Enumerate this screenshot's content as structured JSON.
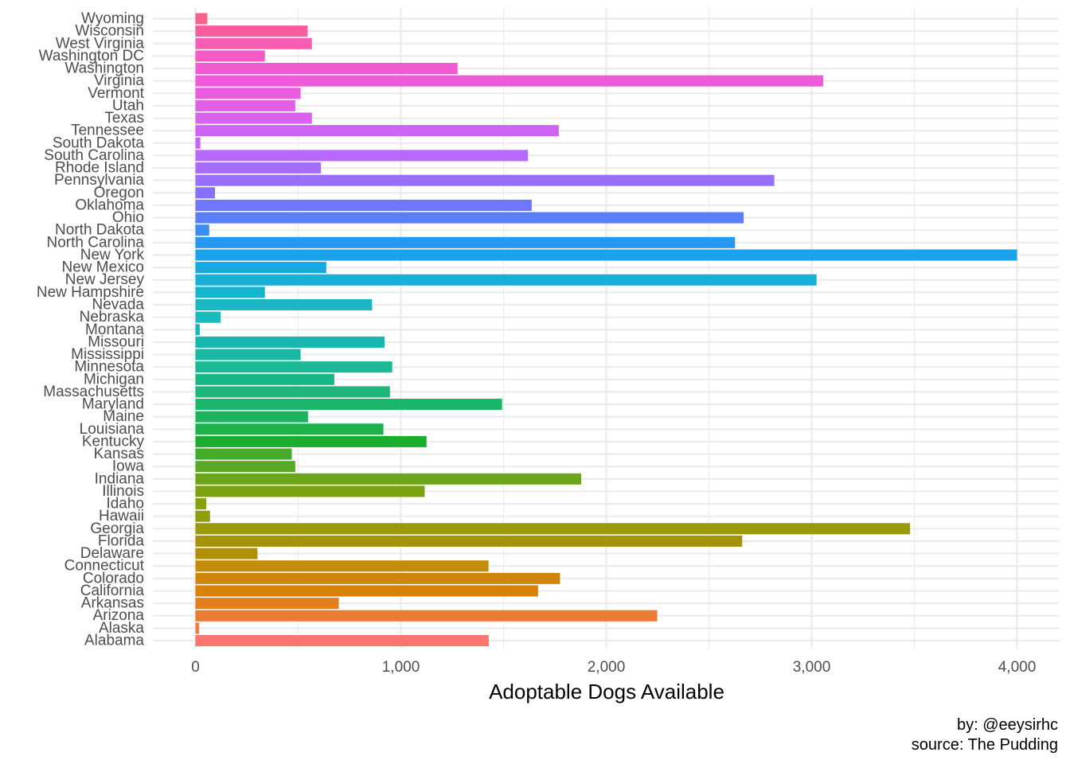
{
  "chart_data": {
    "type": "bar",
    "orientation": "horizontal",
    "categories": [
      "Alabama",
      "Alaska",
      "Arizona",
      "Arkansas",
      "California",
      "Colorado",
      "Connecticut",
      "Delaware",
      "Florida",
      "Georgia",
      "Hawaii",
      "Idaho",
      "Illinois",
      "Indiana",
      "Iowa",
      "Kansas",
      "Kentucky",
      "Louisiana",
      "Maine",
      "Maryland",
      "Massachusetts",
      "Michigan",
      "Minnesota",
      "Mississippi",
      "Missouri",
      "Montana",
      "Nebraska",
      "Nevada",
      "New Hampshire",
      "New Jersey",
      "New Mexico",
      "New York",
      "North Carolina",
      "North Dakota",
      "Ohio",
      "Oklahoma",
      "Oregon",
      "Pennsylvania",
      "Rhode Island",
      "South Carolina",
      "South Dakota",
      "Tennessee",
      "Texas",
      "Utah",
      "Vermont",
      "Virginia",
      "Washington",
      "Washington DC",
      "West Virginia",
      "Wisconsin",
      "Wyoming"
    ],
    "values": [
      1428,
      18,
      2248,
      698,
      1668,
      1775,
      1427,
      302,
      2662,
      3479,
      71,
      53,
      1116,
      1878,
      486,
      469,
      1125,
      915,
      548,
      1493,
      947,
      676,
      958,
      512,
      921,
      21,
      123,
      860,
      338,
      3024,
      637,
      4000,
      2627,
      67,
      2669,
      1637,
      95,
      2818,
      611,
      1619,
      24,
      1769,
      567,
      486,
      512,
      3056,
      1276,
      338,
      567,
      546,
      58
    ],
    "colors": [
      "#F8766D",
      "#F17C48",
      "#EA7B32",
      "#E27E1C",
      "#D88208",
      "#D0860A",
      "#C38D09",
      "#B18F09",
      "#A5930A",
      "#999A0A",
      "#8F9E0B",
      "#85A10B",
      "#7BA10F",
      "#6BA51A",
      "#59A924",
      "#43AC2B",
      "#1BAE2C",
      "#1DB24A",
      "#1EB45E",
      "#1AB76B",
      "#1FB57B",
      "#18B788",
      "#1CB996",
      "#18B8A3",
      "#15B7AE",
      "#19B8B5",
      "#1BBABC",
      "#1BB8C4",
      "#17B5CD",
      "#19B0D8",
      "#17AAE2",
      "#1AA2EC",
      "#2598F0",
      "#3A8DF5",
      "#587FF9",
      "#6E77FB",
      "#866FFC",
      "#9870FD",
      "#A66DFC",
      "#B669FB",
      "#C465F7",
      "#CF63F4",
      "#D862EE",
      "#E15FE8",
      "#E95CE1",
      "#EE5ADA",
      "#F25AD2",
      "#F55BC6",
      "#F65DB3",
      "#F75C9E",
      "#F8628B"
    ],
    "xlabel": "Adoptable Dogs Available",
    "ylabel": "",
    "xlim": [
      -190,
      4095
    ],
    "x_ticks": [
      0,
      1000,
      2000,
      3000,
      4000
    ],
    "x_tick_labels": [
      "0",
      "1,000",
      "2,000",
      "3,000",
      "4,000"
    ],
    "grid": true,
    "legend": "none"
  },
  "caption": {
    "line1": "by: @eeysirhc",
    "line2": "source: The Pudding"
  }
}
